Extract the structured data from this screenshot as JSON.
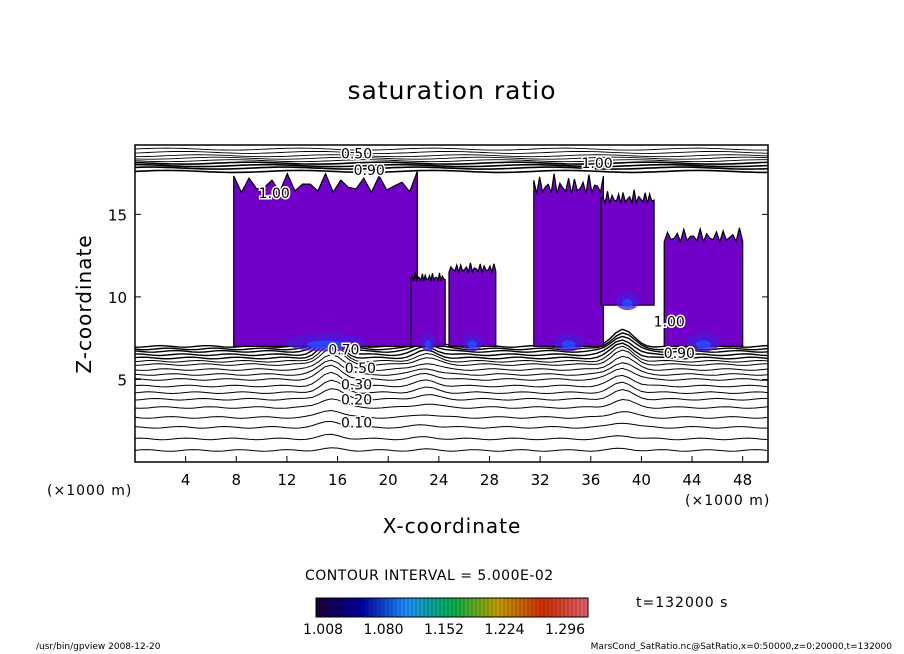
{
  "chart_data": {
    "type": "heatmap",
    "title": "saturation ratio",
    "xlabel": "X-coordinate",
    "ylabel": "Z-coordinate",
    "x_unit": "(×1000 m)",
    "y_unit": "(×1000 m)",
    "xlim": [
      0,
      50
    ],
    "ylim": [
      0,
      19.2
    ],
    "x_ticks": [
      4,
      8,
      12,
      16,
      20,
      24,
      28,
      32,
      36,
      40,
      44,
      48
    ],
    "y_ticks": [
      5,
      10,
      15
    ],
    "contour_interval_text": "CONTOUR INTERVAL = 5.000E-02",
    "time_text": "t=132000 s",
    "colorbar": {
      "tick_labels": [
        "1.008",
        "1.080",
        "1.152",
        "1.224",
        "1.296"
      ],
      "colors": [
        "#1a0033",
        "#0000a0",
        "#1e90ff",
        "#00b050",
        "#c0a000",
        "#d03000",
        "#e06070"
      ]
    },
    "fill_color": "#7100c8",
    "contour_labels": [
      {
        "text": "0.50",
        "x": 17.5,
        "y": 18.7
      },
      {
        "text": "0.90",
        "x": 18.5,
        "y": 17.7
      },
      {
        "text": "1.00",
        "x": 11.0,
        "y": 16.3
      },
      {
        "text": "1.00",
        "x": 36.5,
        "y": 18.1
      },
      {
        "text": "1.00",
        "x": 42.2,
        "y": 8.5
      },
      {
        "text": "0.70",
        "x": 16.5,
        "y": 6.8
      },
      {
        "text": "0.50",
        "x": 17.8,
        "y": 5.7
      },
      {
        "text": "0.30",
        "x": 17.5,
        "y": 4.7
      },
      {
        "text": "0.20",
        "x": 17.5,
        "y": 3.8
      },
      {
        "text": "0.10",
        "x": 17.5,
        "y": 2.4
      },
      {
        "text": "0.90",
        "x": 43.0,
        "y": 6.6
      }
    ],
    "supersaturated_regions": [
      {
        "x": [
          7.8,
          22.3
        ],
        "z": [
          7.0,
          17.6
        ]
      },
      {
        "x": [
          21.8,
          24.5
        ],
        "z": [
          7.0,
          11.5
        ]
      },
      {
        "x": [
          24.8,
          28.5
        ],
        "z": [
          7.0,
          12.1
        ]
      },
      {
        "x": [
          31.5,
          37.0
        ],
        "z": [
          7.0,
          17.5
        ]
      },
      {
        "x": [
          36.8,
          41.0
        ],
        "z": [
          9.5,
          16.5
        ]
      },
      {
        "x": [
          41.8,
          48.0
        ],
        "z": [
          7.0,
          14.2
        ]
      }
    ]
  },
  "footer": {
    "left": "/usr/bin/gpview  2008-12-20",
    "right": "MarsCond_SatRatio.nc@SatRatio,x=0:50000,z=0:20000,t=132000"
  }
}
